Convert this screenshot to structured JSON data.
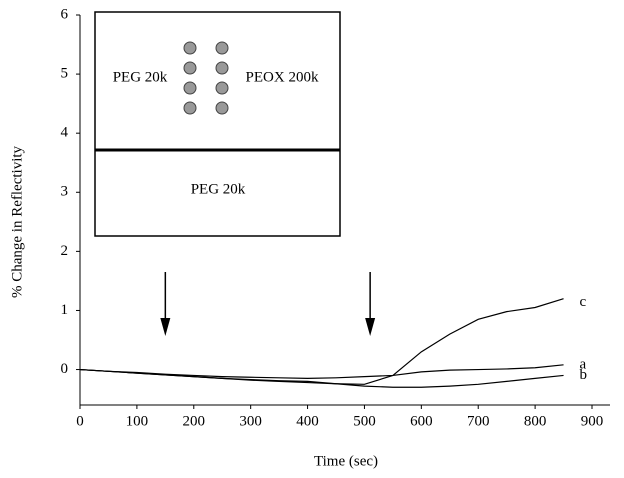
{
  "chart_data": {
    "type": "line",
    "x_label": "Time (sec)",
    "y_label": "% Change in Reflectivity",
    "x": [
      0,
      50,
      100,
      150,
      200,
      250,
      300,
      350,
      400,
      450,
      500,
      550,
      600,
      650,
      700,
      750,
      800,
      850
    ],
    "series": [
      {
        "name": "a",
        "color": "#000000",
        "values": [
          0,
          -0.03,
          -0.05,
          -0.08,
          -0.1,
          -0.12,
          -0.13,
          -0.14,
          -0.15,
          -0.14,
          -0.12,
          -0.1,
          -0.04,
          -0.01,
          0,
          0.01,
          0.03,
          0.08
        ]
      },
      {
        "name": "b",
        "color": "#000000",
        "values": [
          0,
          -0.03,
          -0.06,
          -0.09,
          -0.12,
          -0.15,
          -0.17,
          -0.19,
          -0.2,
          -0.24,
          -0.28,
          -0.3,
          -0.3,
          -0.28,
          -0.25,
          -0.2,
          -0.15,
          -0.1
        ]
      },
      {
        "name": "c",
        "color": "#000000",
        "values": [
          0,
          -0.03,
          -0.06,
          -0.09,
          -0.12,
          -0.15,
          -0.18,
          -0.2,
          -0.22,
          -0.24,
          -0.25,
          -0.1,
          0.3,
          0.6,
          0.85,
          0.98,
          1.05,
          1.2
        ]
      }
    ],
    "xlim": [
      0,
      900
    ],
    "xticks": [
      0,
      100,
      200,
      300,
      400,
      500,
      600,
      700,
      800,
      900
    ],
    "ylim": [
      -0.6,
      6
    ],
    "yticks": [
      0,
      1,
      2,
      3,
      4,
      5,
      6
    ],
    "arrow_x": [
      150,
      510
    ],
    "inset": {
      "top_left": "PEG 20k",
      "top_right": "PEOX 200k",
      "bottom": "PEG 20k"
    }
  }
}
